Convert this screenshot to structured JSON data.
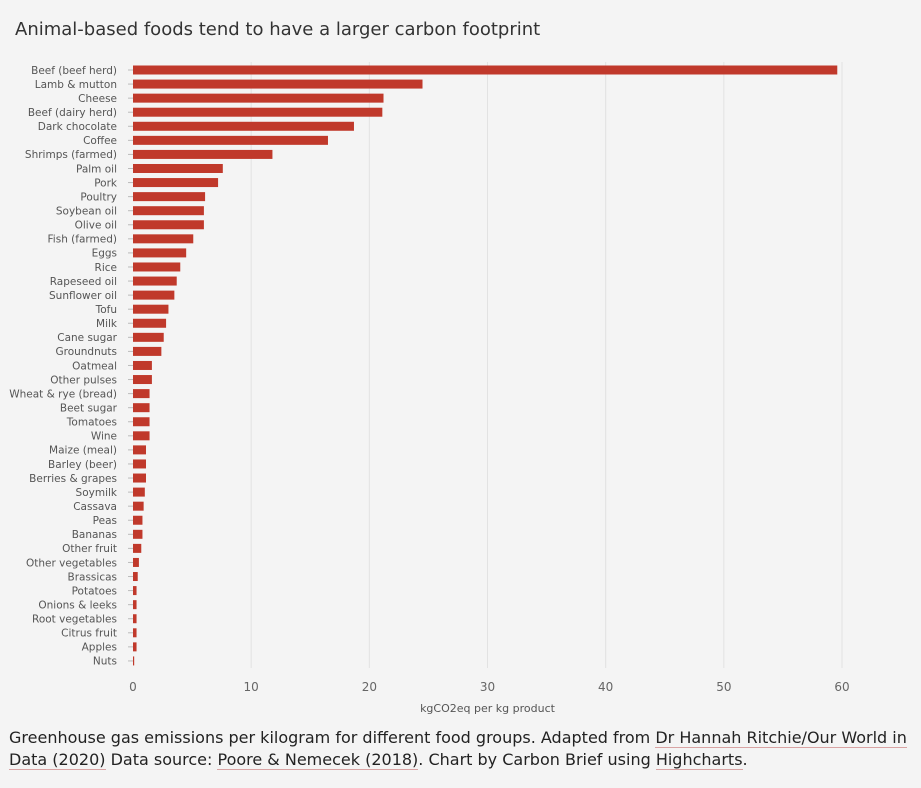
{
  "chart_data": {
    "type": "bar",
    "orientation": "horizontal",
    "title": "Animal-based foods tend to have a larger carbon footprint",
    "xlabel": "kgCO2eq per kg product",
    "ylabel": "",
    "xlim": [
      0,
      62
    ],
    "xticks": [
      0,
      10,
      20,
      30,
      40,
      50,
      60
    ],
    "grid": true,
    "bar_color": "#c0392b",
    "categories": [
      "Beef (beef herd)",
      "Lamb & mutton",
      "Cheese",
      "Beef (dairy herd)",
      "Dark chocolate",
      "Coffee",
      "Shrimps (farmed)",
      "Palm oil",
      "Pork",
      "Poultry",
      "Soybean oil",
      "Olive oil",
      "Fish (farmed)",
      "Eggs",
      "Rice",
      "Rapeseed oil",
      "Sunflower oil",
      "Tofu",
      "Milk",
      "Cane sugar",
      "Groundnuts",
      "Oatmeal",
      "Other pulses",
      "Wheat & rye (bread)",
      "Beet sugar",
      "Tomatoes",
      "Wine",
      "Maize (meal)",
      "Barley (beer)",
      "Berries & grapes",
      "Soymilk",
      "Cassava",
      "Peas",
      "Bananas",
      "Other fruit",
      "Other vegetables",
      "Brassicas",
      "Potatoes",
      "Onions & leeks",
      "Root vegetables",
      "Citrus fruit",
      "Apples",
      "Nuts"
    ],
    "values": [
      59.6,
      24.5,
      21.2,
      21.1,
      18.7,
      16.5,
      11.8,
      7.6,
      7.2,
      6.1,
      6.0,
      6.0,
      5.1,
      4.5,
      4.0,
      3.7,
      3.5,
      3.0,
      2.8,
      2.6,
      2.4,
      1.6,
      1.6,
      1.4,
      1.4,
      1.4,
      1.4,
      1.1,
      1.1,
      1.1,
      1.0,
      0.9,
      0.8,
      0.8,
      0.7,
      0.5,
      0.4,
      0.3,
      0.3,
      0.3,
      0.3,
      0.3,
      0.1
    ]
  },
  "caption": {
    "text1": "Greenhouse gas emissions per kilogram for different food groups. Adapted from ",
    "link1": "Dr Hannah Ritchie/Our World in Data (2020)",
    "text2": " Data source: ",
    "link2": "Poore & Nemecek (2018)",
    "text3": ". Chart by Carbon Brief using ",
    "link3": "Highcharts",
    "text4": "."
  }
}
